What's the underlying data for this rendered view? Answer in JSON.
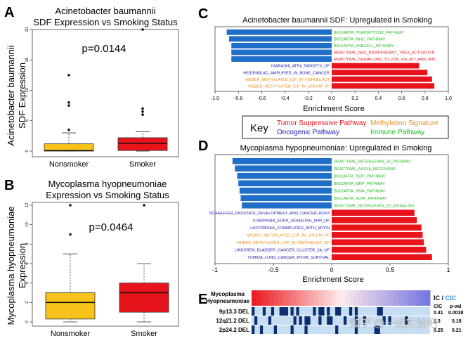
{
  "colors": {
    "blue": "#1f6fc9",
    "red": "#e8141c",
    "yellow": "#f7c21a",
    "tumor": "#e8141c",
    "oncogenic": "#1b1bb0",
    "methylation": "#e8901a",
    "immune": "#1fb81f",
    "panelE_dark": "#0b2e6e",
    "panelE_light": "#c7ddf2"
  },
  "panel_labels": {
    "A": "A",
    "B": "B",
    "C": "C",
    "D": "D",
    "E": "E"
  },
  "chart_data": [
    {
      "id": "A",
      "type": "box",
      "title": [
        "Acinetobacter baumannii",
        "SDF Expression vs Smoking Status"
      ],
      "ylabel": [
        "Acinetobacter baumannii",
        "SDF Expression"
      ],
      "annotation": "p=0.0144",
      "ylim": [
        0,
        20
      ],
      "yticks": [
        0,
        5,
        10,
        15,
        20
      ],
      "categories": [
        "Nonsmoker",
        "Smoker"
      ],
      "boxes": [
        {
          "name": "Nonsmoker",
          "q1": 0,
          "median": 0.1,
          "q3": 1.2,
          "whisker_low": 0,
          "whisker_high": 3,
          "outliers": [
            12.5,
            8,
            7.5,
            3.5
          ],
          "color": "#f7c21a"
        },
        {
          "name": "Smoker",
          "q1": 0.1,
          "median": 1.3,
          "q3": 2.2,
          "whisker_low": 0,
          "whisker_high": 3.2,
          "outliers": [
            20,
            7,
            6.5,
            6
          ],
          "color": "#e8141c"
        }
      ]
    },
    {
      "id": "B",
      "type": "box",
      "title": [
        "Mycoplasma hyopneumoniae",
        "Expression vs Smoking Status"
      ],
      "ylabel": [
        "Mycoplasma hyopneumoniae",
        "Expression"
      ],
      "annotation": "p=0.0464",
      "ylim": [
        0,
        12
      ],
      "yticks": [
        0,
        2,
        4,
        6,
        8,
        10,
        12
      ],
      "categories": [
        "Nonsmoker",
        "Smoker"
      ],
      "boxes": [
        {
          "name": "Nonsmoker",
          "q1": 0.3,
          "median": 2,
          "q3": 3,
          "whisker_low": 0,
          "whisker_high": 7,
          "outliers": [
            12,
            9
          ],
          "color": "#f7c21a"
        },
        {
          "name": "Smoker",
          "q1": 1,
          "median": 3,
          "q3": 4,
          "whisker_low": 0,
          "whisker_high": 6,
          "outliers": [
            12
          ],
          "color": "#e8141c"
        }
      ]
    },
    {
      "id": "C",
      "type": "bar",
      "orientation": "horizontal",
      "title": "Acinetobacter baumannii SDF: Upregulated in Smoking",
      "xlabel": "Enrichment Score",
      "xlim": [
        -1.0,
        1.0
      ],
      "xticks": [
        "-1.0",
        "-0.8",
        "-0.6",
        "-0.4",
        "-0.2",
        "0.0",
        "0.2",
        "0.4",
        "0.6",
        "0.8",
        "1.0"
      ],
      "bars": [
        {
          "label": "BIOCARTA_TCAPOPTOSIS_PATHWAY",
          "value": -0.9,
          "cat": "immune"
        },
        {
          "label": "BIOCARTA_MHC_PATHWAY",
          "value": -0.88,
          "cat": "immune"
        },
        {
          "label": "BIOCARTA_ASBCELL_PATHWAY",
          "value": -0.86,
          "cat": "immune"
        },
        {
          "label": "REACTOME_NGF_INDEPENDANT_TRKA_ACTIVATION",
          "value": -0.86,
          "cat": "tumor"
        },
        {
          "label": "REACTOME_SIGNALLING_TO_P38_VIA_RIT_AND_RIN",
          "value": -0.86,
          "cat": "tumor"
        },
        {
          "label": "IGARASHI_ATF4_TARGETS_UP",
          "value": 0.75,
          "cat": "oncogenic"
        },
        {
          "label": "HEIDENBLAD_AMPLIFIED_IN_BONE_CANCER",
          "value": 0.82,
          "cat": "oncogenic"
        },
        {
          "label": "WEBER_METHYLATED_ICP_IN_FIBROBLAST",
          "value": 0.86,
          "cat": "methylation"
        },
        {
          "label": "WEBER_METHYLATED_ICP_IN_SPERM_UP",
          "value": 0.88,
          "cat": "methylation"
        }
      ]
    },
    {
      "id": "D",
      "type": "bar",
      "orientation": "horizontal",
      "title": "Mycoplasma hypopneumoniae: Upregulated in Smoking",
      "xlabel": "Enrichment Score",
      "xlim": [
        -1.0,
        1.0
      ],
      "xticks": [
        "-1",
        "-0.5",
        "0",
        "0.5",
        "1"
      ],
      "bars": [
        {
          "label": "REACTOME_INTERLEUKIN_36_PATHWAY",
          "value": -0.85,
          "cat": "immune"
        },
        {
          "label": "REACTOME_ALPHA_DEFENSINS",
          "value": -0.83,
          "cat": "immune"
        },
        {
          "label": "BIOCARTA_PEPI_PATHWAY",
          "value": -0.81,
          "cat": "immune"
        },
        {
          "label": "BIOCARTA_MRP_PATHWAY",
          "value": -0.8,
          "cat": "immune"
        },
        {
          "label": "BIOCARTA_IFNA_PATHWAY",
          "value": -0.79,
          "cat": "immune"
        },
        {
          "label": "BIOCARTA_SLRP_PATHWAY",
          "value": -0.78,
          "cat": "immune"
        },
        {
          "label": "REACTOME_INTERLEUKIN_23_SIGNALING",
          "value": -0.77,
          "cat": "immune"
        },
        {
          "label": "SCHAEFFER_PROSTATE_DEVELOPMENT_AND_CANCER_BOX3",
          "value": 0.71,
          "cat": "oncogenic"
        },
        {
          "label": "KOBAYASHI_EGFR_SIGNALING_6HR_UP",
          "value": 0.73,
          "cat": "oncogenic"
        },
        {
          "label": "LASTOWSKA_COAMPLIFIED_WITH_MYCN",
          "value": 0.77,
          "cat": "oncogenic"
        },
        {
          "label": "WEBER_METHYLATED_LCP_IN_SPERM_UP",
          "value": 0.78,
          "cat": "methylation"
        },
        {
          "label": "WEBER_METHYLATED_LCP_IN_FIBROBLAST_UP",
          "value": 0.79,
          "cat": "methylation"
        },
        {
          "label": "LINDGREN_BLADDER_CANCER_CLUSTER_2A_UP",
          "value": 0.81,
          "cat": "oncogenic"
        },
        {
          "label": "TOMIDA_LUNG_CANCER_POOR_SURVIVAL",
          "value": 0.86,
          "cat": "oncogenic"
        }
      ]
    },
    {
      "id": "E",
      "type": "heatmap",
      "row_title": [
        "Mycoplasma",
        "Hyopneumoniae"
      ],
      "rows": [
        "9p13.3 DEL",
        "12q21.2 DEL",
        "2p24.2 DEL"
      ],
      "header": {
        "ic": "IC",
        "cic": "CIC",
        "slash": " / ",
        "col1": "CIC",
        "col2": "p-val"
      },
      "stats": [
        {
          "cic": "0.41",
          "pval": "0.0038"
        },
        {
          "cic": "0.3",
          "pval": "0.18"
        },
        {
          "cic": "0.25",
          "pval": "0.21"
        }
      ],
      "matrix": [
        "1000100100111010100000101101001100010100000001100000000000000000",
        "0100001000000001010110001001100001000100100000010100000100000000",
        "1001000010000010000100000000001000000100000011000000000000000000"
      ]
    }
  ],
  "legend": {
    "title": "Key",
    "items": [
      {
        "label": "Tumor Suppressive Pathway",
        "cat": "tumor"
      },
      {
        "label": "Methylation Signature",
        "cat": "methylation"
      },
      {
        "label": "Oncogenic Pathway",
        "cat": "oncogenic"
      },
      {
        "label": "Immune Pathway",
        "cat": "immune"
      }
    ]
  },
  "watermark": "知乎 @一起实验吧"
}
